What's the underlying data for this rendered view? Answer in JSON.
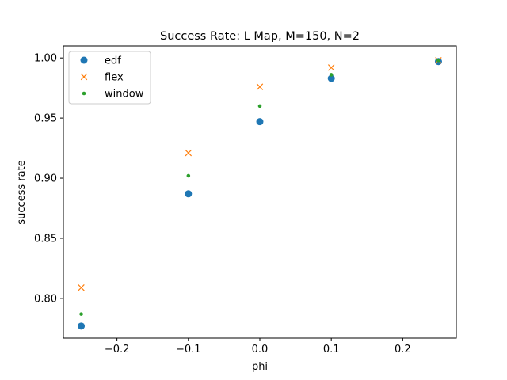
{
  "chart_data": {
    "type": "scatter",
    "title": "Success Rate: L Map, M=150, N=2",
    "xlabel": "phi",
    "ylabel": "success rate",
    "xlim": [
      -0.275,
      0.275
    ],
    "ylim": [
      0.767,
      1.01
    ],
    "xticks": [
      -0.2,
      -0.1,
      0.0,
      0.1,
      0.2
    ],
    "xtick_labels": [
      "−0.2",
      "−0.1",
      "0.0",
      "0.1",
      "0.2"
    ],
    "yticks": [
      0.8,
      0.85,
      0.9,
      0.95,
      1.0
    ],
    "ytick_labels": [
      "0.80",
      "0.85",
      "0.90",
      "0.95",
      "1.00"
    ],
    "grid": false,
    "legend_position": "top-left",
    "x": [
      -0.25,
      -0.1,
      0.0,
      0.1,
      0.25
    ],
    "series": [
      {
        "name": "edf",
        "marker": "circle",
        "color": "#1f77b4",
        "values": [
          0.777,
          0.887,
          0.947,
          0.983,
          0.997
        ]
      },
      {
        "name": "flex",
        "marker": "x",
        "color": "#ff7f0e",
        "values": [
          0.809,
          0.921,
          0.976,
          0.992,
          0.998
        ]
      },
      {
        "name": "window",
        "marker": "dot",
        "color": "#2ca02c",
        "values": [
          0.787,
          0.902,
          0.96,
          0.986,
          0.998
        ]
      }
    ]
  }
}
